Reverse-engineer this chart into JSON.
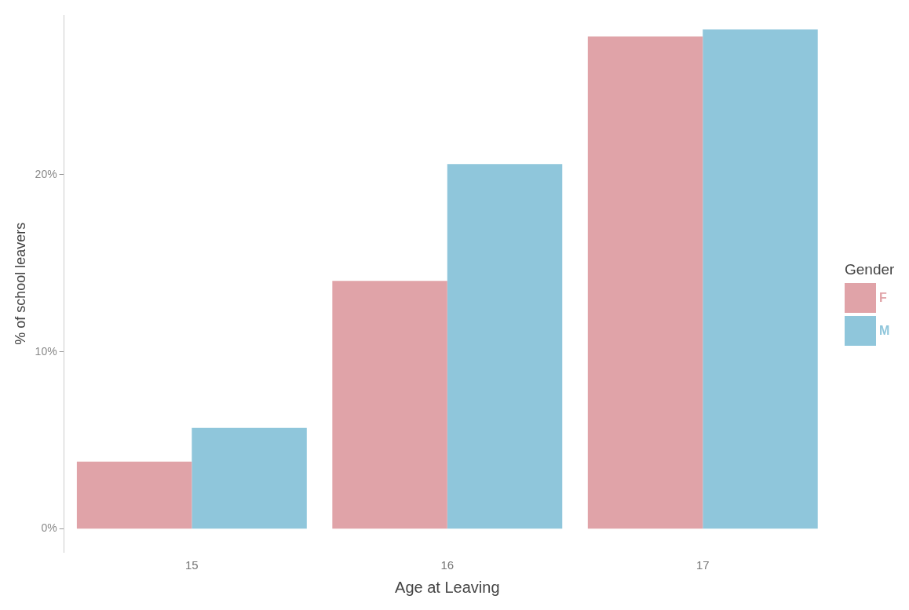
{
  "chart_data": {
    "type": "bar",
    "xlabel": "Age at Leaving",
    "ylabel": "% of school leavers",
    "legend_title": "Gender",
    "categories": [
      "15",
      "16",
      "17"
    ],
    "series": [
      {
        "name": "F",
        "color": "#e0a3a8",
        "values": [
          3.8,
          14.0,
          27.8
        ]
      },
      {
        "name": "M",
        "color": "#8fc6db",
        "values": [
          5.7,
          20.6,
          28.2
        ]
      }
    ],
    "ylim": [
      -1.3,
      29
    ],
    "yticks": [
      {
        "value": 0,
        "label": "0%"
      },
      {
        "value": 10,
        "label": "10%"
      },
      {
        "value": 20,
        "label": "20%"
      }
    ],
    "grid": false,
    "legend": "right"
  }
}
